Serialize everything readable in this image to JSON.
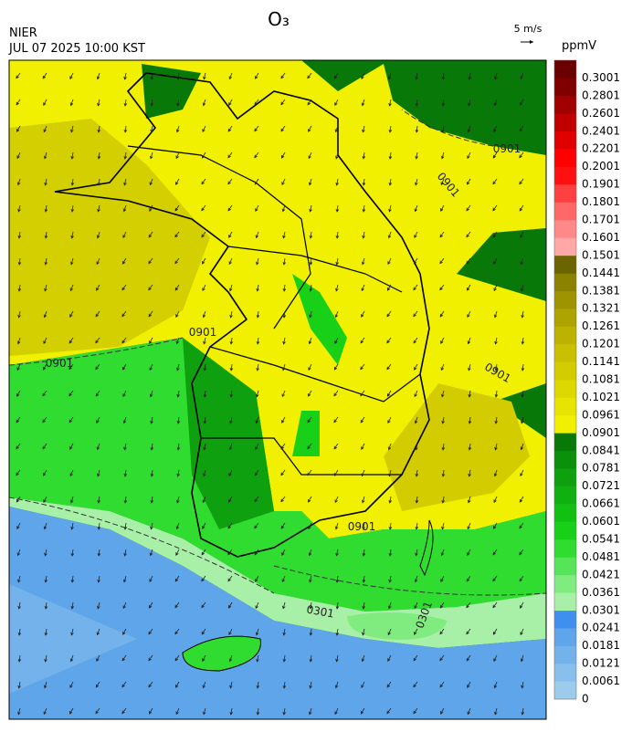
{
  "header": {
    "title": "O₃",
    "source": "NIER",
    "datetime": "JUL 07 2025 10:00 KST",
    "vector_scale": "5 m/s"
  },
  "colorbar": {
    "unit": "ppmV",
    "ticks": [
      0,
      0.0061,
      0.0121,
      0.0181,
      0.0241,
      0.0301,
      0.0361,
      0.0421,
      0.0481,
      0.0541,
      0.0601,
      0.0661,
      0.0721,
      0.0781,
      0.0841,
      0.0901,
      0.0961,
      0.1021,
      0.1081,
      0.1141,
      0.1201,
      0.1261,
      0.1321,
      0.1381,
      0.1441,
      0.1501,
      0.1601,
      0.1701,
      0.1801,
      0.1901,
      0.2001,
      0.2201,
      0.2401,
      0.2601,
      0.2801,
      0.3001
    ],
    "colors": [
      "#9ccbec",
      "#88bfec",
      "#74b2eb",
      "#5fa5ea",
      "#3f90ee",
      "#a8f0a8",
      "#80ec80",
      "#58e458",
      "#30dc30",
      "#18d018",
      "#12c012",
      "#10b010",
      "#0ea00e",
      "#0a900a",
      "#087808",
      "#f0f000",
      "#e6e400",
      "#dcd800",
      "#d2cc00",
      "#c8c000",
      "#bcb200",
      "#aea400",
      "#9e9400",
      "#8a8200",
      "#6c6400",
      "#ffa8a8",
      "#ff8888",
      "#ff6868",
      "#ff4040",
      "#ff1010",
      "#ff0000",
      "#e00000",
      "#c00000",
      "#a00000",
      "#800000",
      "#6a0000"
    ]
  },
  "contour_labels": [
    "0901",
    "0901",
    "0901",
    "0901",
    "0901",
    "0901",
    "0301",
    "0301"
  ]
}
